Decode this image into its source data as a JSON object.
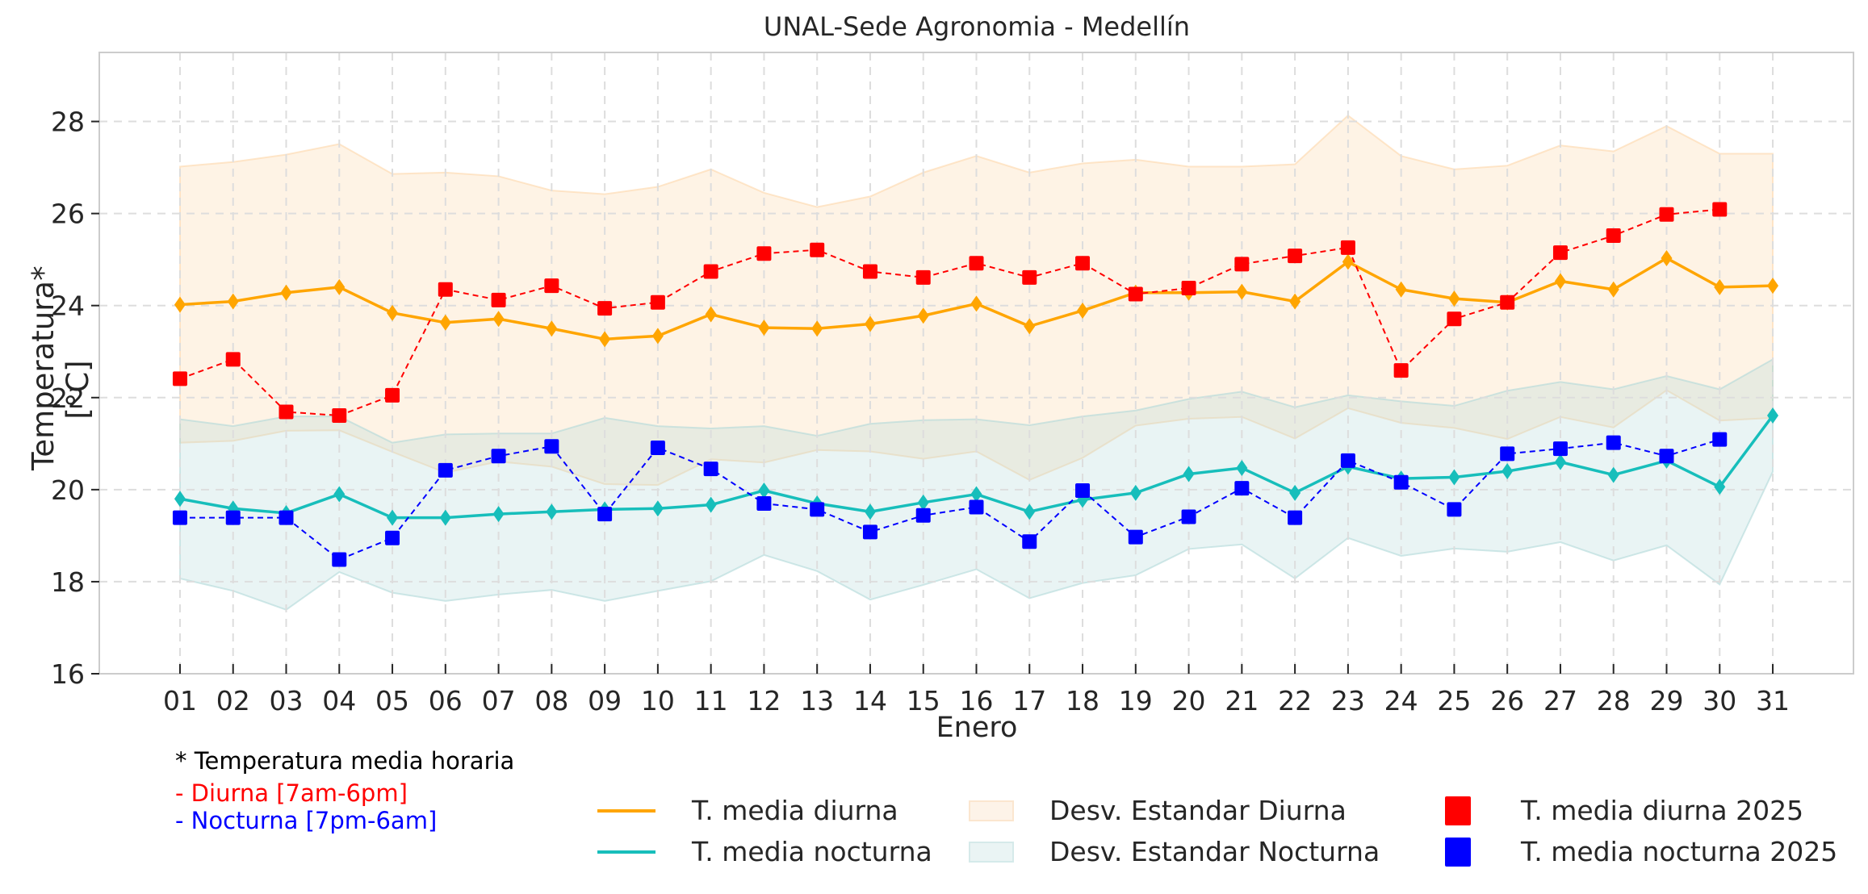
{
  "colors": {
    "diurna_mean": "#FFA500",
    "nocturna_mean": "#17BEBB",
    "diurna_2025": "#FF0000",
    "nocturna_2025": "#0000FF",
    "diurna_band": "#FDEBD7",
    "nocturna_band": "#D7ECEC",
    "grid": "#DDDDDD",
    "axes": "#CCCCCC"
  },
  "notes": {
    "line1": "* Temperatura media horaria",
    "line2": "- Diurna [7am-6pm]",
    "line3": "- Nocturna [7pm-6am]"
  },
  "chart_data": {
    "type": "line",
    "title": "UNAL-Sede Agronomia - Medellín",
    "xlabel": "Enero",
    "ylabel": "Temperatura* [°C]",
    "ylim": [
      16,
      29.5
    ],
    "xlim": [
      -0.52,
      32.52
    ],
    "grid": true,
    "legend_position": "bottom",
    "x": [
      "01",
      "02",
      "03",
      "04",
      "05",
      "06",
      "07",
      "08",
      "09",
      "10",
      "11",
      "12",
      "13",
      "14",
      "15",
      "16",
      "17",
      "18",
      "19",
      "20",
      "21",
      "22",
      "23",
      "24",
      "25",
      "26",
      "27",
      "28",
      "29",
      "30",
      "31"
    ],
    "yticks": [
      16,
      18,
      20,
      22,
      24,
      26,
      28
    ],
    "series": [
      {
        "name": "T. media diurna",
        "kind": "line-diamond",
        "color_key": "diurna_mean",
        "values": [
          24.02,
          24.09,
          24.28,
          24.4,
          23.84,
          23.63,
          23.71,
          23.5,
          23.27,
          23.34,
          23.81,
          23.52,
          23.5,
          23.6,
          23.78,
          24.04,
          23.55,
          23.89,
          24.28,
          24.28,
          24.3,
          24.09,
          24.95,
          24.35,
          24.15,
          24.07,
          24.53,
          24.35,
          25.03,
          24.4,
          24.43
        ]
      },
      {
        "name": "T. media nocturna",
        "kind": "line-diamond",
        "color_key": "nocturna_mean",
        "values": [
          19.8,
          19.59,
          19.49,
          19.9,
          19.39,
          19.39,
          19.47,
          19.52,
          19.57,
          19.59,
          19.67,
          19.98,
          19.7,
          19.52,
          19.72,
          19.9,
          19.52,
          19.78,
          19.93,
          20.34,
          20.47,
          19.93,
          20.5,
          20.24,
          20.27,
          20.4,
          20.6,
          20.32,
          20.63,
          20.06,
          21.61
        ]
      },
      {
        "name": "Desv. Estandar Diurna",
        "kind": "band",
        "color_key": "diurna_band",
        "upper": [
          27.02,
          27.12,
          27.28,
          27.51,
          26.86,
          26.89,
          26.81,
          26.5,
          26.42,
          26.58,
          26.96,
          26.45,
          26.14,
          26.37,
          26.89,
          27.25,
          26.89,
          27.09,
          27.17,
          27.02,
          27.02,
          27.07,
          28.13,
          27.25,
          26.96,
          27.04,
          27.48,
          27.35,
          27.9,
          27.3,
          27.3
        ],
        "lower": [
          21.02,
          21.06,
          21.28,
          21.29,
          20.82,
          20.37,
          20.61,
          20.5,
          20.12,
          20.1,
          20.66,
          20.59,
          20.86,
          20.83,
          20.67,
          20.83,
          20.21,
          20.69,
          21.39,
          21.54,
          21.58,
          21.11,
          21.77,
          21.45,
          21.34,
          21.1,
          21.58,
          21.35,
          22.16,
          21.5,
          21.56
        ]
      },
      {
        "name": "Desv. Estandar Nocturna",
        "kind": "band",
        "color_key": "nocturna_band",
        "upper": [
          21.53,
          21.38,
          21.59,
          21.59,
          21.02,
          21.2,
          21.22,
          21.22,
          21.56,
          21.38,
          21.33,
          21.38,
          21.17,
          21.43,
          21.51,
          21.53,
          21.4,
          21.59,
          21.72,
          21.97,
          22.13,
          21.79,
          22.05,
          21.92,
          21.82,
          22.15,
          22.34,
          22.18,
          22.47,
          22.18,
          22.83
        ],
        "lower": [
          18.07,
          17.8,
          17.39,
          18.21,
          17.76,
          17.58,
          17.72,
          17.82,
          17.58,
          17.8,
          18.01,
          18.58,
          18.23,
          17.61,
          17.93,
          18.27,
          17.64,
          17.97,
          18.14,
          18.71,
          18.81,
          18.07,
          18.95,
          18.56,
          18.72,
          18.65,
          18.86,
          18.46,
          18.79,
          17.94,
          20.39
        ]
      },
      {
        "name": "T. media diurna 2025",
        "kind": "dashed-square",
        "color_key": "diurna_2025",
        "values": [
          22.41,
          22.83,
          21.69,
          21.61,
          22.05,
          24.35,
          24.12,
          24.43,
          23.94,
          24.07,
          24.74,
          25.13,
          25.21,
          24.74,
          24.61,
          24.92,
          24.61,
          24.92,
          24.25,
          24.38,
          24.9,
          25.08,
          25.26,
          22.59,
          23.71,
          24.07,
          25.15,
          25.52,
          25.98,
          26.09,
          null
        ]
      },
      {
        "name": "T. media nocturna 2025",
        "kind": "dashed-square",
        "color_key": "nocturna_2025",
        "values": [
          19.39,
          19.39,
          19.39,
          18.48,
          18.95,
          20.42,
          20.73,
          20.94,
          19.47,
          20.91,
          20.45,
          19.7,
          19.57,
          19.08,
          19.44,
          19.62,
          18.87,
          19.98,
          18.97,
          19.41,
          20.03,
          19.39,
          20.63,
          20.16,
          19.57,
          20.78,
          20.89,
          21.02,
          20.73,
          21.09,
          null
        ]
      }
    ]
  },
  "legend": {
    "diurna_mean": "T. media diurna",
    "nocturna_mean": "T. media nocturna",
    "diurna_band": "Desv. Estandar Diurna",
    "nocturna_band": "Desv. Estandar Nocturna",
    "diurna_2025": "T. media diurna 2025",
    "nocturna_2025": "T. media nocturna 2025"
  }
}
